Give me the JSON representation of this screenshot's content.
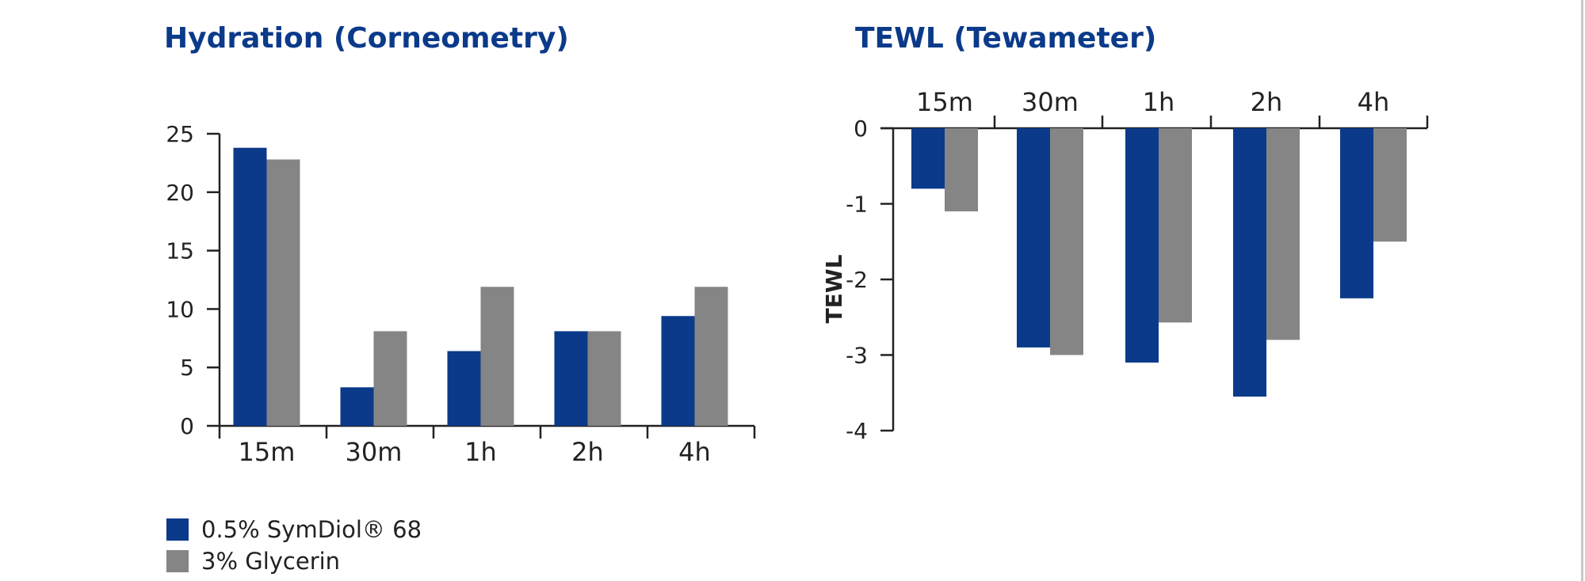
{
  "colors": {
    "series_a": "#0b3a8a",
    "series_b": "#858585",
    "axis": "#222222",
    "title": "#0b3a8a"
  },
  "chart_data": [
    {
      "type": "bar",
      "title": "Hydration (Corneometry)",
      "categories": [
        "15m",
        "30m",
        "1h",
        "2h",
        "4h"
      ],
      "series": [
        {
          "name": "0.5% SymDiol® 68",
          "values": [
            23.8,
            3.3,
            6.4,
            8.1,
            9.4
          ]
        },
        {
          "name": "3% Glycerin",
          "values": [
            22.8,
            8.1,
            11.9,
            8.1,
            11.9
          ]
        }
      ],
      "ylim": [
        0,
        25
      ],
      "yticks": [
        0,
        5,
        10,
        15,
        20,
        25
      ],
      "xlabel": "",
      "ylabel": "",
      "grid": false,
      "legend": "bottom-left"
    },
    {
      "type": "bar",
      "title": "TEWL (Tewameter)",
      "categories": [
        "15m",
        "30m",
        "1h",
        "2h",
        "4h"
      ],
      "series": [
        {
          "name": "0.5% SymDiol® 68",
          "values": [
            -0.8,
            -2.9,
            -3.1,
            -3.55,
            -2.25
          ]
        },
        {
          "name": "3% Glycerin",
          "values": [
            -1.1,
            -3.0,
            -2.57,
            -2.8,
            -1.5
          ]
        }
      ],
      "ylim": [
        -4,
        0
      ],
      "yticks": [
        0,
        -1,
        -2,
        -3,
        -4
      ],
      "xlabel": "",
      "ylabel": "TEWL",
      "x_axis_position": "top",
      "grid": false,
      "legend": "bottom-left"
    }
  ],
  "legend": [
    {
      "label": "0.5% SymDiol® 68",
      "color": "#0b3a8a"
    },
    {
      "label": "3% Glycerin",
      "color": "#858585"
    }
  ]
}
